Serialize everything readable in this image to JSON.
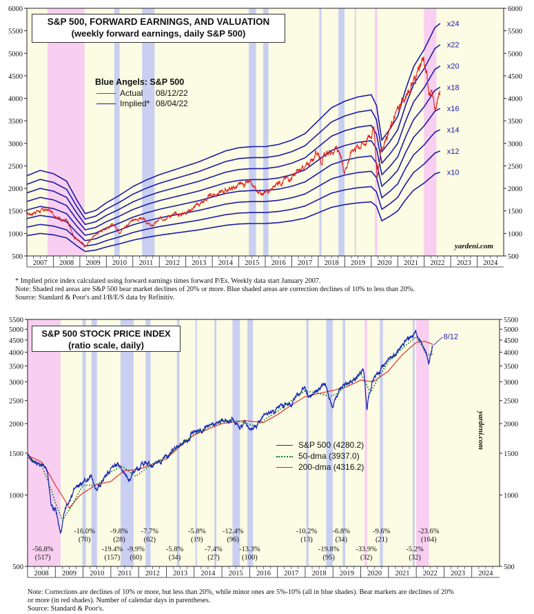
{
  "chart_data": [
    {
      "type": "line",
      "title": "S&P 500, FORWARD EARNINGS, AND VALUATION",
      "subtitle": "(weekly forward earnings, daily S&P 500)",
      "ylim": [
        500,
        6000
      ],
      "y_ticks": [
        500,
        1000,
        1500,
        2000,
        2500,
        3000,
        3500,
        4000,
        4500,
        5000,
        5500,
        6000
      ],
      "x_ticks": [
        "2007",
        "2008",
        "2009",
        "2010",
        "2011",
        "2012",
        "2013",
        "2014",
        "2015",
        "2016",
        "2017",
        "2018",
        "2019",
        "2020",
        "2021",
        "2022",
        "2023",
        "2024"
      ],
      "legend_title": "Blue Angels: S&P 500",
      "legend": [
        {
          "name": "Actual",
          "date": "08/12/22",
          "color": "#e0201a"
        },
        {
          "name": "Implied*",
          "date": "08/04/22",
          "color": "#1a1aa8"
        }
      ],
      "multiple_labels": [
        "x24",
        "x22",
        "x20",
        "x18",
        "x16",
        "x14",
        "x12",
        "x10"
      ],
      "multiples": [
        24,
        22,
        20,
        18,
        16,
        14,
        12,
        10
      ],
      "forward_earnings": {
        "x": [
          2007.0,
          2007.5,
          2008.0,
          2008.5,
          2008.9,
          2009.2,
          2009.6,
          2010.0,
          2010.5,
          2011.0,
          2011.5,
          2012.0,
          2012.5,
          2013.0,
          2013.5,
          2014.0,
          2014.5,
          2015.0,
          2015.5,
          2016.0,
          2016.5,
          2017.0,
          2017.5,
          2018.0,
          2018.5,
          2019.0,
          2019.5,
          2020.0,
          2020.2,
          2020.4,
          2020.7,
          2021.0,
          2021.3,
          2021.6,
          2022.0,
          2022.4,
          2022.6
        ],
        "values": [
          95,
          100,
          97,
          90,
          72,
          60,
          63,
          70,
          77,
          85,
          91,
          96,
          100,
          104,
          108,
          113,
          118,
          121,
          122,
          122,
          124,
          128,
          134,
          146,
          158,
          164,
          168,
          170,
          160,
          128,
          138,
          150,
          175,
          196,
          212,
          232,
          236
        ]
      },
      "sp500": {
        "x": [
          2007.0,
          2007.4,
          2007.8,
          2008.2,
          2008.5,
          2008.8,
          2009.1,
          2009.2,
          2009.5,
          2009.9,
          2010.3,
          2010.5,
          2010.9,
          2011.3,
          2011.7,
          2012.0,
          2012.3,
          2012.8,
          2013.0,
          2013.5,
          2014.0,
          2014.5,
          2015.0,
          2015.4,
          2015.7,
          2016.1,
          2016.5,
          2017.0,
          2017.5,
          2018.0,
          2018.1,
          2018.7,
          2018.98,
          2019.3,
          2019.8,
          2020.1,
          2020.22,
          2020.4,
          2020.7,
          2021.0,
          2021.3,
          2021.6,
          2021.98,
          2022.2,
          2022.45,
          2022.6
        ],
        "values": [
          1420,
          1500,
          1520,
          1350,
          1280,
          900,
          800,
          700,
          930,
          1110,
          1180,
          1050,
          1250,
          1350,
          1150,
          1300,
          1400,
          1420,
          1480,
          1650,
          1850,
          1960,
          2050,
          2110,
          1920,
          1900,
          2150,
          2270,
          2450,
          2820,
          2650,
          2900,
          2400,
          2900,
          3050,
          3350,
          2250,
          2900,
          3300,
          3750,
          4000,
          4400,
          4800,
          4200,
          3750,
          4280
        ]
      },
      "bear_markets_shaded": [
        [
          2007.78,
          2009.18
        ],
        [
          2020.14,
          2020.23
        ],
        [
          2021.99,
          2022.46
        ]
      ],
      "corrections_shaded": [
        [
          2010.3,
          2010.5
        ],
        [
          2011.35,
          2011.82
        ],
        [
          2015.38,
          2015.65
        ],
        [
          2015.92,
          2016.12
        ],
        [
          2018.04,
          2018.12
        ],
        [
          2018.76,
          2018.99
        ],
        [
          2019.38,
          2019.42
        ]
      ],
      "watermark": "yardeni.com"
    },
    {
      "type": "line",
      "title": "S&P 500 STOCK PRICE INDEX",
      "subtitle": "(ratio scale, daily)",
      "scale": "log",
      "ylim": [
        500,
        5500
      ],
      "y_ticks": [
        500,
        1000,
        1500,
        2000,
        2500,
        3000,
        3500,
        4000,
        4500,
        5000,
        5500
      ],
      "x_ticks": [
        "2008",
        "2009",
        "2010",
        "2011",
        "2012",
        "2013",
        "2014",
        "2015",
        "2016",
        "2017",
        "2018",
        "2019",
        "2020",
        "2021",
        "2022",
        "2023",
        "2024"
      ],
      "series": [
        {
          "name": "S&P 500 (4280.2)",
          "color": "#1a2ab8",
          "style": "solid"
        },
        {
          "name": "50-dma (3937.0)",
          "color": "#0a7a2a",
          "style": "dotted"
        },
        {
          "name": "200-dma (4316.2)",
          "color": "#e0201a",
          "style": "solid"
        }
      ],
      "end_label": "8/12",
      "annotations": [
        {
          "x": 2008.55,
          "row": 1,
          "pct": "-56.8%",
          "days": "(517)"
        },
        {
          "x": 2010.05,
          "row": 0,
          "pct": "-16.0%",
          "days": "(70)"
        },
        {
          "x": 2011.05,
          "row": 1,
          "pct": "-19.4%",
          "days": "(157)"
        },
        {
          "x": 2011.3,
          "row": 0,
          "pct": "-9.8%",
          "days": "(28)"
        },
        {
          "x": 2011.9,
          "row": 1,
          "pct": "-9.9%",
          "days": "(60)"
        },
        {
          "x": 2012.4,
          "row": 0,
          "pct": "-7.7%",
          "days": "(62)"
        },
        {
          "x": 2013.3,
          "row": 1,
          "pct": "-5.8%",
          "days": "(34)"
        },
        {
          "x": 2014.1,
          "row": 0,
          "pct": "-5.8%",
          "days": "(19)"
        },
        {
          "x": 2014.7,
          "row": 1,
          "pct": "-7.4%",
          "days": "(27)"
        },
        {
          "x": 2015.4,
          "row": 0,
          "pct": "-12.4%",
          "days": "(96)"
        },
        {
          "x": 2016.0,
          "row": 1,
          "pct": "-13.3%",
          "days": "(100)"
        },
        {
          "x": 2018.05,
          "row": 0,
          "pct": "-10.2%",
          "days": "(13)"
        },
        {
          "x": 2018.85,
          "row": 1,
          "pct": "-19.8%",
          "days": "(95)"
        },
        {
          "x": 2019.3,
          "row": 0,
          "pct": "-6.8%",
          "days": "(34)"
        },
        {
          "x": 2020.2,
          "row": 1,
          "pct": "-33.9%",
          "days": "(32)"
        },
        {
          "x": 2020.75,
          "row": 0,
          "pct": "-9.6%",
          "days": "(21)"
        },
        {
          "x": 2021.95,
          "row": 1,
          "pct": "-5.2%",
          "days": "(32)"
        },
        {
          "x": 2022.45,
          "row": 0,
          "pct": "-23.6%",
          "days": "(164)"
        }
      ],
      "sp500": {
        "x": [
          2008.0,
          2008.3,
          2008.7,
          2008.85,
          2009.0,
          2009.19,
          2009.4,
          2009.7,
          2010.0,
          2010.3,
          2010.5,
          2010.9,
          2011.3,
          2011.7,
          2011.8,
          2012.2,
          2012.5,
          2012.9,
          2013.3,
          2013.7,
          2014.0,
          2014.3,
          2014.7,
          2015.0,
          2015.4,
          2015.65,
          2015.8,
          2016.1,
          2016.5,
          2017.0,
          2017.5,
          2018.0,
          2018.1,
          2018.7,
          2018.98,
          2019.3,
          2019.8,
          2020.1,
          2020.22,
          2020.4,
          2020.7,
          2021.0,
          2021.3,
          2021.6,
          2021.99,
          2022.2,
          2022.45,
          2022.6
        ],
        "values": [
          1450,
          1370,
          1270,
          900,
          870,
          680,
          900,
          1050,
          1130,
          1190,
          1050,
          1250,
          1360,
          1140,
          1240,
          1380,
          1320,
          1420,
          1580,
          1690,
          1840,
          1900,
          1980,
          2060,
          2110,
          1880,
          2050,
          1880,
          2150,
          2270,
          2450,
          2840,
          2600,
          2920,
          2350,
          2900,
          3100,
          3380,
          2240,
          3000,
          3350,
          3750,
          4000,
          4450,
          4790,
          4350,
          3670,
          4280
        ]
      },
      "dma50": {
        "x": [
          2008.0,
          2008.5,
          2009.0,
          2009.25,
          2009.6,
          2010.0,
          2010.5,
          2011.0,
          2011.4,
          2011.9,
          2012.5,
          2013.0,
          2014.0,
          2015.0,
          2015.6,
          2016.2,
          2017.0,
          2018.0,
          2018.4,
          2018.9,
          2019.2,
          2020.0,
          2020.35,
          2020.7,
          2021.0,
          2022.0,
          2022.4,
          2022.6
        ],
        "values": [
          1440,
          1330,
          930,
          780,
          900,
          1100,
          1100,
          1250,
          1320,
          1200,
          1350,
          1450,
          1800,
          2050,
          2050,
          1950,
          2250,
          2750,
          2700,
          2600,
          2700,
          3250,
          2700,
          3200,
          3650,
          4650,
          3900,
          3937
        ]
      },
      "dma200": {
        "x": [
          2008.0,
          2008.5,
          2009.0,
          2009.5,
          2009.9,
          2010.5,
          2011.0,
          2011.5,
          2012.0,
          2013.0,
          2014.0,
          2015.0,
          2015.8,
          2016.5,
          2017.0,
          2018.0,
          2019.0,
          2019.5,
          2020.0,
          2020.45,
          2021.0,
          2021.5,
          2022.0,
          2022.3,
          2022.6
        ],
        "values": [
          1470,
          1380,
          1100,
          880,
          1000,
          1110,
          1140,
          1270,
          1280,
          1420,
          1790,
          2000,
          2060,
          2020,
          2180,
          2600,
          2760,
          2860,
          3050,
          3000,
          3330,
          3900,
          4400,
          4450,
          4316
        ]
      },
      "bear_markets_shaded": [
        [
          2007.78,
          2009.19
        ],
        [
          2020.14,
          2020.23
        ],
        [
          2021.99,
          2022.46
        ]
      ],
      "corrections_shaded": [
        [
          2009.98,
          2010.1
        ],
        [
          2010.3,
          2010.5
        ],
        [
          2011.35,
          2011.82
        ],
        [
          2012.25,
          2012.43
        ],
        [
          2013.38,
          2013.47
        ],
        [
          2014.05,
          2014.1
        ],
        [
          2014.73,
          2014.8
        ],
        [
          2015.38,
          2015.65
        ],
        [
          2015.92,
          2016.12
        ],
        [
          2018.04,
          2018.12
        ],
        [
          2018.76,
          2018.99
        ],
        [
          2019.35,
          2019.44
        ],
        [
          2020.69,
          2020.8
        ],
        [
          2021.87,
          2021.94
        ]
      ],
      "watermark": "yardeni.com"
    }
  ],
  "notes_top": [
    "*  Implied price index calculated using forward earnings times forward P/Es. Weekly data start January 2007.",
    "    Note: Shaded red areas are S&P 500 bear market declines of 20% or more.  Blue shaded areas are correction declines of 10% to less than 20%.",
    "    Source: Standard & Poor's and I/B/E/S data by Refinitiv."
  ],
  "notes_bottom": [
    "Note: Corrections are declines of 10% or more, but less than 20%, while minor ones are 5%-10% (all in blue shades). Bear markets are declines of 20%",
    "or more (in red shades). Number of calendar days in parentheses.",
    "Source: Standard & Poor's."
  ],
  "colors": {
    "bg_panel": "#fcfbe3",
    "bear": "#f8cff0",
    "correction": "#c9cff0",
    "implied": "#1a1aa8",
    "actual": "#e0201a",
    "sp500": "#1a2ab8",
    "dma50": "#0a7a2a",
    "dma200": "#e0201a"
  }
}
